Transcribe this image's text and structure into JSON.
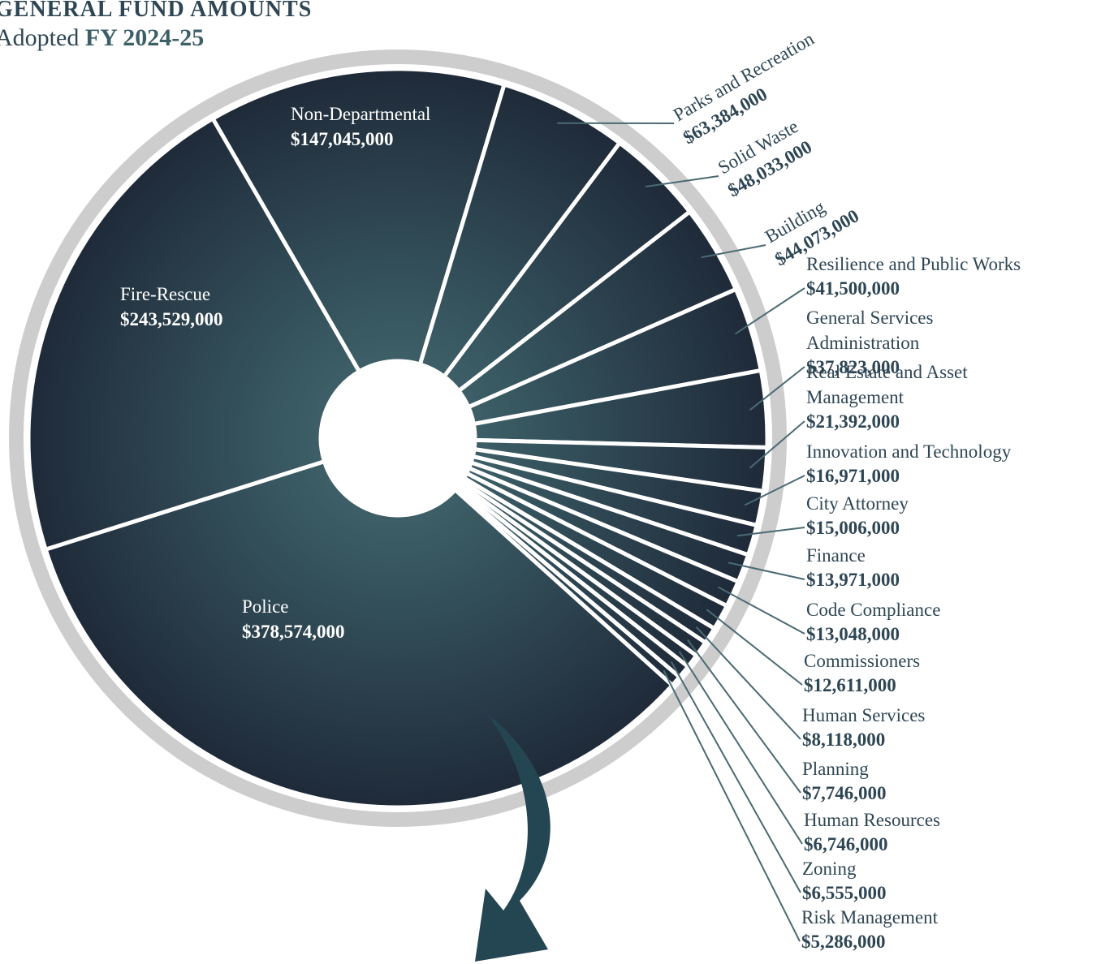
{
  "chart_data": {
    "type": "donut",
    "title": "GENERAL FUND AMOUNTS",
    "subtitle": [
      "Adopted",
      "FY 2024-25"
    ],
    "categories": [
      "Police",
      "Fire-Rescue",
      "Non-Departmental",
      "Parks and Recreation",
      "Solid Waste",
      "Building",
      "Resilience and Public Works",
      "General Services Administration",
      "Real Estate and Asset Management",
      "Innovation and Technology",
      "City Attorney",
      "Finance",
      "Code Compliance",
      "Commissioners",
      "Human Services",
      "Planning",
      "Human Resources",
      "Zoning",
      "Risk Management"
    ],
    "values": [
      378574000,
      243529000,
      147045000,
      63384000,
      48033000,
      44073000,
      41500000,
      37823000,
      21392000,
      16971000,
      15006000,
      13971000,
      13048000,
      12611000,
      8118000,
      7746000,
      6746000,
      6555000,
      5286000
    ],
    "value_labels": [
      "$378,574,000",
      "$243,529,000",
      "$147,045,000",
      "$63,384,000",
      "$48,033,000",
      "$44,073,000",
      "$41,500,000",
      "$37,823,000",
      "$21,392,000",
      "$16,971,000",
      "$15,006,000",
      "$13,971,000",
      "$13,048,000",
      "$12,611,000",
      "$8,118,000",
      "$7,746,000",
      "$6,746,000",
      "$6,555,000",
      "$5,286,000"
    ],
    "color": "#23303f"
  }
}
